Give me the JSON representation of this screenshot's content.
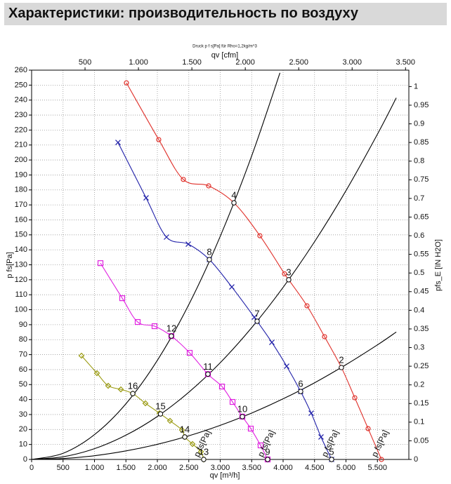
{
  "chart_data": {
    "type": "line",
    "title": "Характеристики: производительность по воздуху",
    "note": "Druck p f s[Pa] für Rho=1,2kg/m^3",
    "x_label": "qv [m³/h]",
    "x2_label": "qv [cfm]",
    "y_label": "p fs[Pa]",
    "y2_label": "pfs_E [IN H2O]",
    "xlim": [
      0,
      6000
    ],
    "xticks": [
      0,
      500,
      {
        "value": 1000,
        "label": "1.000"
      },
      {
        "value": 1500,
        "label": "1.500"
      },
      {
        "value": 2000,
        "label": "2.000"
      },
      {
        "value": 2500,
        "label": "2.500"
      },
      {
        "value": 3000,
        "label": "3.000"
      },
      {
        "value": 3500,
        "label": "3.500"
      },
      {
        "value": 4000,
        "label": "4.000"
      },
      {
        "value": 4500,
        "label": "4.500"
      },
      {
        "value": 5000,
        "label": "5.000"
      },
      {
        "value": 5500,
        "label": "5.500"
      }
    ],
    "x2lim": [
      0,
      3531
    ],
    "x2ticks": [
      500,
      {
        "value": 1000,
        "label": "1.000"
      },
      {
        "value": 1500,
        "label": "1.500"
      },
      {
        "value": 2000,
        "label": "2.000"
      },
      {
        "value": 2500,
        "label": "2.500"
      },
      {
        "value": 3000,
        "label": "3.000"
      },
      {
        "value": 3500,
        "label": "3.500"
      }
    ],
    "ylim": [
      0,
      260
    ],
    "yticks": [
      0,
      10,
      20,
      30,
      40,
      50,
      60,
      70,
      80,
      90,
      100,
      110,
      120,
      130,
      140,
      150,
      160,
      170,
      180,
      190,
      200,
      210,
      220,
      230,
      240,
      250,
      260
    ],
    "y2lim": [
      0,
      1.044
    ],
    "y2ticks": [
      0,
      0.05,
      0.1,
      0.15,
      0.2,
      0.25,
      0.3,
      0.35,
      0.4,
      0.45,
      0.5,
      0.55,
      0.6,
      0.65,
      0.7,
      0.75,
      0.8,
      0.85,
      0.9,
      0.95,
      1
    ],
    "grid": true,
    "series": [
      {
        "name": "p fs[Pa]",
        "color": "#e0302a",
        "marker": "circle",
        "x": [
          1508,
          2022,
          2413,
          2816,
          3218,
          3631,
          4022,
          4089,
          4380,
          4659,
          4927,
          5140,
          5352,
          5564
        ],
        "values": [
          251.5,
          213.6,
          187,
          182.7,
          171.4,
          149.4,
          124,
          120,
          102.6,
          82,
          61.4,
          41.2,
          20.6,
          0
        ]
      },
      {
        "name": "p fs[Pa]",
        "color": "#1f1fa8",
        "marker": "x",
        "x": [
          1374,
          1821,
          2145,
          2492,
          2827,
          3184,
          3542,
          3587,
          3821,
          4056,
          4279,
          4447,
          4603,
          4771
        ],
        "values": [
          211.7,
          174.7,
          148.5,
          143.8,
          133.5,
          115.2,
          95,
          92.3,
          78.2,
          62.3,
          45.4,
          30.9,
          15,
          0
        ]
      },
      {
        "name": "p fs[Pa]",
        "color": "#e020e0",
        "marker": "square",
        "x": [
          1095,
          1441,
          1687,
          1955,
          2223,
          2514,
          2804,
          3028,
          3196,
          3352,
          3486,
          3642,
          3754
        ],
        "values": [
          131.1,
          107.7,
          91.8,
          89,
          82.4,
          71.2,
          57,
          48.7,
          38.4,
          28.6,
          20.6,
          9.4,
          0
        ]
      },
      {
        "name": "p fs[Pa]",
        "color": "#9a9a10",
        "marker": "diamond",
        "x": [
          793,
          1039,
          1218,
          1419,
          1609,
          1810,
          2034,
          2201,
          2391,
          2436,
          2559,
          2693,
          2737
        ],
        "values": [
          69.3,
          57.6,
          49.2,
          46.8,
          44,
          37.5,
          30.9,
          25.8,
          19.7,
          15,
          10.3,
          5.2,
          0
        ]
      }
    ],
    "system_curves": [
      {
        "color": "#000000",
        "x": [
          0,
          500,
          1000,
          1500,
          2000,
          2500,
          3000,
          3500,
          3950
        ],
        "values": [
          0,
          4.1,
          16.6,
          37.2,
          66.2,
          103.4,
          149,
          202.7,
          258.2
        ]
      },
      {
        "color": "#000000",
        "x": [
          0,
          500,
          1000,
          1500,
          2000,
          2500,
          3000,
          3500,
          4000,
          4500,
          5000,
          5500,
          5800
        ],
        "values": [
          0,
          1.8,
          7.2,
          16.2,
          28.7,
          44.9,
          64.6,
          88,
          114.9,
          145.4,
          179.5,
          217.2,
          241.5
        ]
      },
      {
        "color": "#000000",
        "x": [
          0,
          500,
          1000,
          1500,
          2000,
          2500,
          3000,
          3500,
          4000,
          4500,
          5000,
          5500,
          5800
        ],
        "values": [
          0,
          0.6,
          2.5,
          5.7,
          10.1,
          15.8,
          22.8,
          31,
          40.5,
          51.2,
          63.3,
          76.5,
          85.1
        ]
      }
    ],
    "operating_points": [
      {
        "label": "2",
        "x": 4927,
        "y": 61.4
      },
      {
        "label": "3",
        "x": 4089,
        "y": 120
      },
      {
        "label": "4",
        "x": 3218,
        "y": 171.4
      },
      {
        "label": "5",
        "x": 4771,
        "y": 0
      },
      {
        "label": "6",
        "x": 4279,
        "y": 45.4
      },
      {
        "label": "7",
        "x": 3587,
        "y": 92.3
      },
      {
        "label": "8",
        "x": 2827,
        "y": 133.5
      },
      {
        "label": "9",
        "x": 3754,
        "y": 0
      },
      {
        "label": "10",
        "x": 3352,
        "y": 28.6
      },
      {
        "label": "11",
        "x": 2804,
        "y": 57
      },
      {
        "label": "12",
        "x": 2223,
        "y": 82.4
      },
      {
        "label": "13",
        "x": 2737,
        "y": 0
      },
      {
        "label": "14",
        "x": 2436,
        "y": 15
      },
      {
        "label": "15",
        "x": 2050,
        "y": 30.4
      },
      {
        "label": "16",
        "x": 1609,
        "y": 44
      }
    ]
  }
}
